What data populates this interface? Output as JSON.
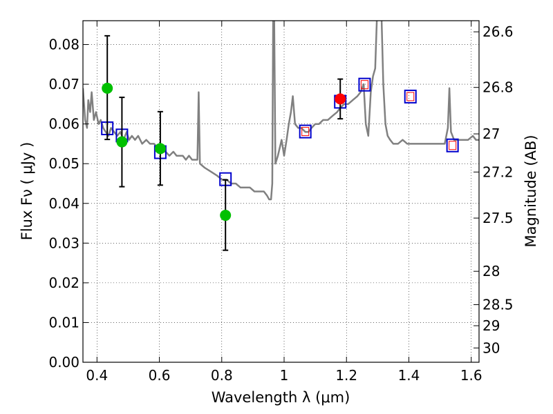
{
  "chart_data": {
    "type": "scatter",
    "xlabel": "Wavelength  λ (μm)",
    "ylabel": "Flux  Fν  ( μJy )",
    "y2label": "Magnitude (AB)",
    "xlim": [
      0.355,
      1.625
    ],
    "ylim": [
      0.0,
      0.086
    ],
    "grid": true,
    "x_ticks": [
      0.4,
      0.6,
      0.8,
      1.0,
      1.2,
      1.4,
      1.6
    ],
    "x_tick_labels": [
      "0.4",
      "0.6",
      "0.8",
      "1",
      "1.2",
      "1.4",
      "1.6"
    ],
    "y_ticks": [
      0.0,
      0.01,
      0.02,
      0.03,
      0.04,
      0.05,
      0.06,
      0.07,
      0.08
    ],
    "y_tick_labels": [
      "0.00",
      "0.01",
      "0.02",
      "0.03",
      "0.04",
      "0.05",
      "0.06",
      "0.07",
      "0.08"
    ],
    "mag_ticks": [
      {
        "flux": 0.0832,
        "label": "26.6"
      },
      {
        "flux": 0.0692,
        "label": "26.8"
      },
      {
        "flux": 0.0575,
        "label": "27"
      },
      {
        "flux": 0.0479,
        "label": "27.2"
      },
      {
        "flux": 0.0363,
        "label": "27.5"
      },
      {
        "flux": 0.0229,
        "label": "28"
      },
      {
        "flux": 0.0145,
        "label": "28.5"
      },
      {
        "flux": 0.0092,
        "label": "29"
      },
      {
        "flux": 0.0036,
        "label": "30"
      }
    ],
    "series": [
      {
        "name": "model_spectrum",
        "type": "line",
        "color": "#808080",
        "points": [
          [
            0.355,
            0.069
          ],
          [
            0.362,
            0.061
          ],
          [
            0.368,
            0.059
          ],
          [
            0.372,
            0.066
          ],
          [
            0.378,
            0.063
          ],
          [
            0.383,
            0.068
          ],
          [
            0.39,
            0.061
          ],
          [
            0.397,
            0.063
          ],
          [
            0.405,
            0.06
          ],
          [
            0.412,
            0.061
          ],
          [
            0.42,
            0.059
          ],
          [
            0.428,
            0.058
          ],
          [
            0.437,
            0.057
          ],
          [
            0.445,
            0.059
          ],
          [
            0.455,
            0.058
          ],
          [
            0.465,
            0.057
          ],
          [
            0.475,
            0.058
          ],
          [
            0.485,
            0.056
          ],
          [
            0.495,
            0.058
          ],
          [
            0.503,
            0.056
          ],
          [
            0.512,
            0.057
          ],
          [
            0.522,
            0.056
          ],
          [
            0.532,
            0.057
          ],
          [
            0.545,
            0.055
          ],
          [
            0.558,
            0.056
          ],
          [
            0.57,
            0.055
          ],
          [
            0.583,
            0.055
          ],
          [
            0.595,
            0.054
          ],
          [
            0.608,
            0.053
          ],
          [
            0.62,
            0.053
          ],
          [
            0.632,
            0.052
          ],
          [
            0.645,
            0.053
          ],
          [
            0.655,
            0.052
          ],
          [
            0.665,
            0.052
          ],
          [
            0.675,
            0.052
          ],
          [
            0.685,
            0.051
          ],
          [
            0.695,
            0.052
          ],
          [
            0.705,
            0.051
          ],
          [
            0.715,
            0.051
          ],
          [
            0.722,
            0.051
          ],
          [
            0.726,
            0.068
          ],
          [
            0.73,
            0.05
          ],
          [
            0.745,
            0.049
          ],
          [
            0.765,
            0.048
          ],
          [
            0.785,
            0.047
          ],
          [
            0.8,
            0.046
          ],
          [
            0.815,
            0.046
          ],
          [
            0.83,
            0.045
          ],
          [
            0.845,
            0.045
          ],
          [
            0.86,
            0.044
          ],
          [
            0.875,
            0.044
          ],
          [
            0.89,
            0.044
          ],
          [
            0.905,
            0.043
          ],
          [
            0.92,
            0.043
          ],
          [
            0.935,
            0.043
          ],
          [
            0.945,
            0.042
          ],
          [
            0.952,
            0.041
          ],
          [
            0.958,
            0.041
          ],
          [
            0.962,
            0.045
          ],
          [
            0.965,
            0.088
          ],
          [
            0.968,
            0.088
          ],
          [
            0.972,
            0.05
          ],
          [
            0.98,
            0.052
          ],
          [
            0.992,
            0.056
          ],
          [
            1.0,
            0.052
          ],
          [
            1.008,
            0.056
          ],
          [
            1.015,
            0.06
          ],
          [
            1.022,
            0.063
          ],
          [
            1.028,
            0.067
          ],
          [
            1.035,
            0.06
          ],
          [
            1.045,
            0.059
          ],
          [
            1.055,
            0.059
          ],
          [
            1.068,
            0.058
          ],
          [
            1.078,
            0.058
          ],
          [
            1.088,
            0.059
          ],
          [
            1.1,
            0.06
          ],
          [
            1.112,
            0.06
          ],
          [
            1.125,
            0.061
          ],
          [
            1.14,
            0.061
          ],
          [
            1.155,
            0.062
          ],
          [
            1.17,
            0.063
          ],
          [
            1.18,
            0.064
          ],
          [
            1.192,
            0.065
          ],
          [
            1.205,
            0.065
          ],
          [
            1.22,
            0.066
          ],
          [
            1.235,
            0.067
          ],
          [
            1.245,
            0.068
          ],
          [
            1.255,
            0.07
          ],
          [
            1.262,
            0.06
          ],
          [
            1.27,
            0.057
          ],
          [
            1.278,
            0.068
          ],
          [
            1.285,
            0.072
          ],
          [
            1.292,
            0.074
          ],
          [
            1.298,
            0.088
          ],
          [
            1.312,
            0.088
          ],
          [
            1.318,
            0.07
          ],
          [
            1.325,
            0.06
          ],
          [
            1.332,
            0.057
          ],
          [
            1.34,
            0.056
          ],
          [
            1.35,
            0.055
          ],
          [
            1.365,
            0.055
          ],
          [
            1.38,
            0.056
          ],
          [
            1.395,
            0.055
          ],
          [
            1.41,
            0.055
          ],
          [
            1.425,
            0.055
          ],
          [
            1.44,
            0.055
          ],
          [
            1.455,
            0.055
          ],
          [
            1.47,
            0.055
          ],
          [
            1.485,
            0.055
          ],
          [
            1.5,
            0.055
          ],
          [
            1.515,
            0.055
          ],
          [
            1.525,
            0.059
          ],
          [
            1.53,
            0.069
          ],
          [
            1.535,
            0.058
          ],
          [
            1.545,
            0.056
          ],
          [
            1.56,
            0.056
          ],
          [
            1.575,
            0.056
          ],
          [
            1.59,
            0.056
          ],
          [
            1.605,
            0.057
          ],
          [
            1.615,
            0.056
          ],
          [
            1.625,
            0.056
          ]
        ]
      },
      {
        "name": "model_photometry",
        "type": "scatter",
        "marker": "square",
        "color": "#0000cc",
        "points": [
          [
            0.433,
            0.0589
          ],
          [
            0.48,
            0.0571
          ],
          [
            0.603,
            0.0529
          ],
          [
            0.812,
            0.0461
          ],
          [
            1.068,
            0.0581
          ],
          [
            1.18,
            0.0656
          ],
          [
            1.258,
            0.0699
          ],
          [
            1.405,
            0.0669
          ],
          [
            1.54,
            0.0546
          ]
        ]
      },
      {
        "name": "observed_detections",
        "type": "scatter",
        "marker": "circle",
        "color": "#00c000",
        "points": [
          {
            "x": 0.433,
            "y": 0.069,
            "err_low": 0.0561,
            "err_high": 0.0822
          },
          {
            "x": 0.48,
            "y": 0.0555,
            "err_low": 0.0442,
            "err_high": 0.0667
          },
          {
            "x": 0.603,
            "y": 0.0538,
            "err_low": 0.0446,
            "err_high": 0.0631
          },
          {
            "x": 0.812,
            "y": 0.037,
            "err_low": 0.0282,
            "err_high": 0.0459
          }
        ]
      },
      {
        "name": "observed_ir",
        "type": "scatter",
        "marker": "circle",
        "color": "#ff0000",
        "points": [
          {
            "x": 1.18,
            "y": 0.0663,
            "err_low": 0.0613,
            "err_high": 0.0713
          }
        ]
      },
      {
        "name": "upper_limit_markers",
        "type": "scatter",
        "marker": "small-square",
        "color": "#ff0000",
        "points": [
          [
            1.068,
            0.0581
          ],
          [
            1.258,
            0.0699
          ],
          [
            1.405,
            0.0669
          ],
          [
            1.54,
            0.0546
          ]
        ]
      }
    ]
  }
}
